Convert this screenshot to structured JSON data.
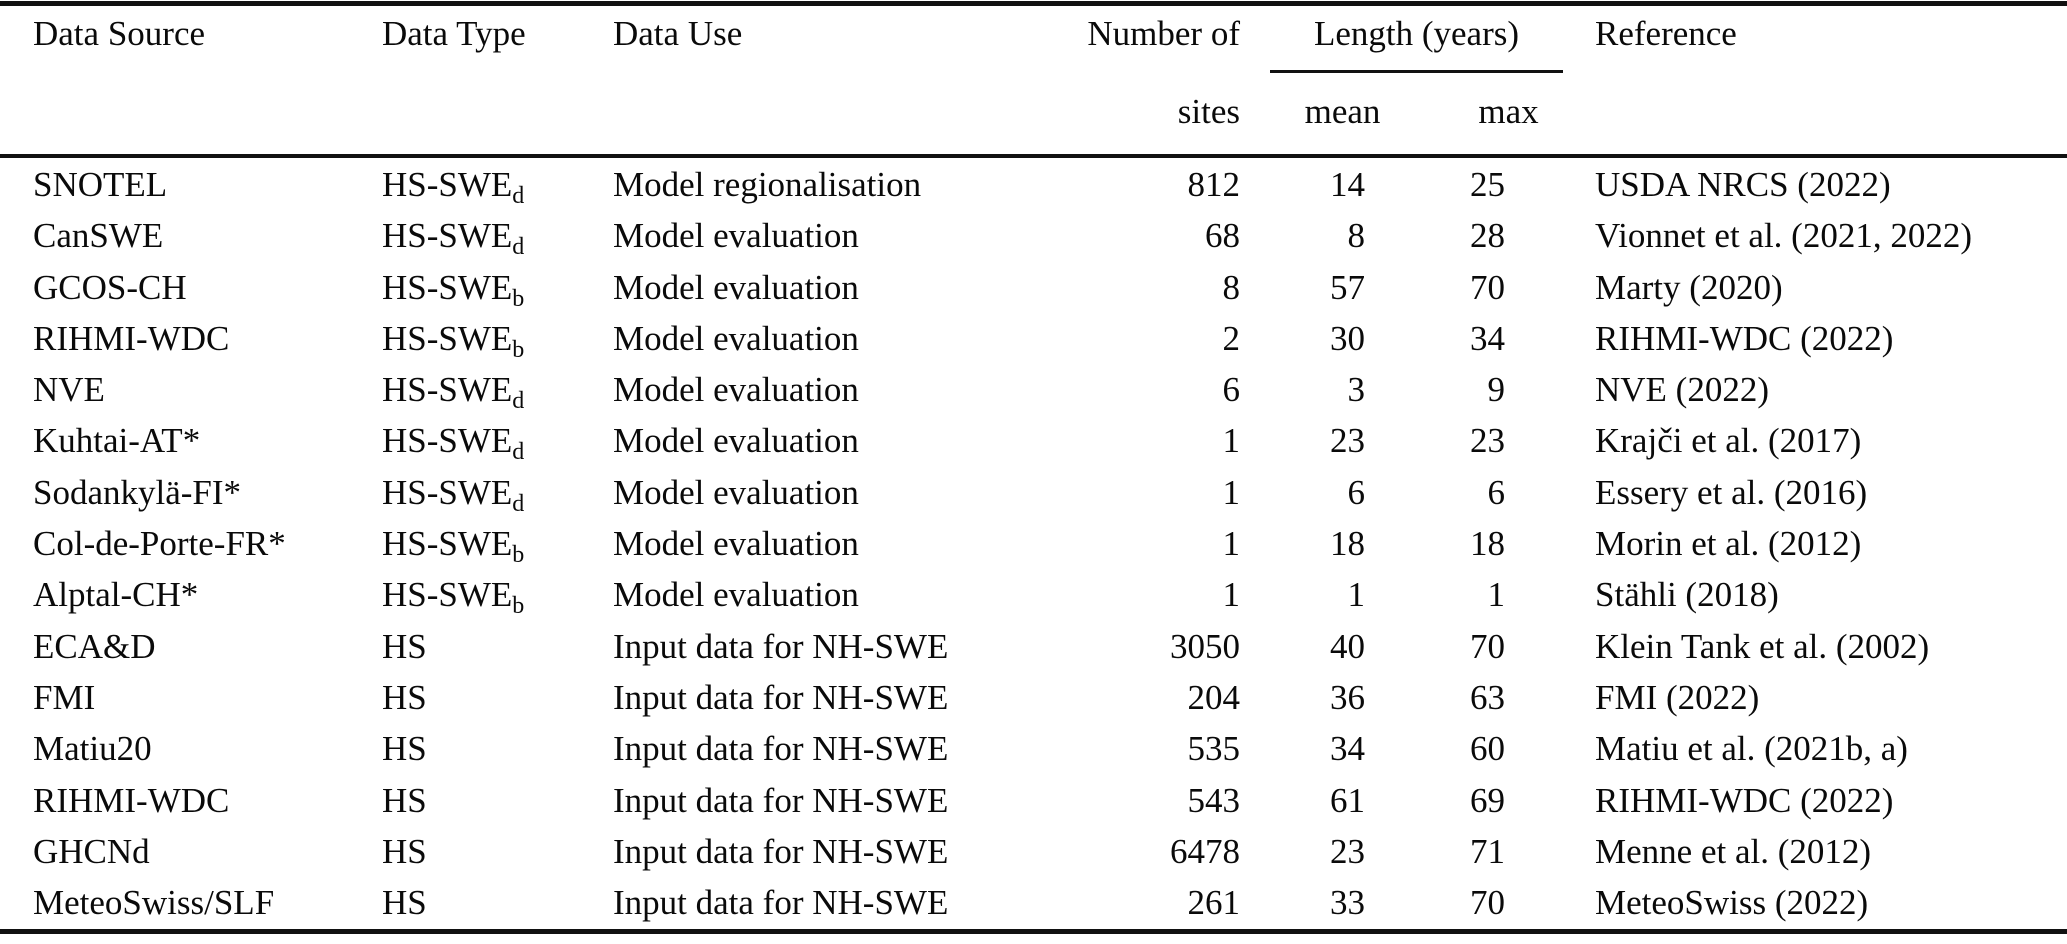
{
  "table": {
    "headers": {
      "data_source": "Data Source",
      "data_type": "Data Type",
      "data_use": "Data Use",
      "number_of": "Number of",
      "sites": "sites",
      "length_years": "Length (years)",
      "mean": "mean",
      "max": "max",
      "reference": "Reference"
    },
    "rows": [
      {
        "source": "SNOTEL",
        "type_base": "HS-SWE",
        "type_sub": "d",
        "use": "Model regionalisation",
        "sites": "812",
        "mean": "14",
        "max": "25",
        "reference": "USDA NRCS (2022)"
      },
      {
        "source": "CanSWE",
        "type_base": "HS-SWE",
        "type_sub": "d",
        "use": "Model evaluation",
        "sites": "68",
        "mean": "8",
        "max": "28",
        "reference": "Vionnet et al. (2021, 2022)"
      },
      {
        "source": "GCOS-CH",
        "type_base": "HS-SWE",
        "type_sub": "b",
        "use": "Model evaluation",
        "sites": "8",
        "mean": "57",
        "max": "70",
        "reference": "Marty (2020)"
      },
      {
        "source": "RIHMI-WDC",
        "type_base": "HS-SWE",
        "type_sub": "b",
        "use": "Model evaluation",
        "sites": "2",
        "mean": "30",
        "max": "34",
        "reference": "RIHMI-WDC (2022)"
      },
      {
        "source": "NVE",
        "type_base": "HS-SWE",
        "type_sub": "d",
        "use": "Model evaluation",
        "sites": "6",
        "mean": "3",
        "max": "9",
        "reference": "NVE (2022)"
      },
      {
        "source": "Kuhtai-AT*",
        "type_base": "HS-SWE",
        "type_sub": "d",
        "use": "Model evaluation",
        "sites": "1",
        "mean": "23",
        "max": "23",
        "reference": "Krajči et al. (2017)"
      },
      {
        "source": "Sodankylä-FI*",
        "type_base": "HS-SWE",
        "type_sub": "d",
        "use": "Model evaluation",
        "sites": "1",
        "mean": "6",
        "max": "6",
        "reference": "Essery et al. (2016)"
      },
      {
        "source": "Col-de-Porte-FR*",
        "type_base": "HS-SWE",
        "type_sub": "b",
        "use": "Model evaluation",
        "sites": "1",
        "mean": "18",
        "max": "18",
        "reference": "Morin et al. (2012)"
      },
      {
        "source": "Alptal-CH*",
        "type_base": "HS-SWE",
        "type_sub": "b",
        "use": "Model evaluation",
        "sites": "1",
        "mean": "1",
        "max": "1",
        "reference": "Stähli (2018)"
      },
      {
        "source": "ECA&D",
        "type_base": "HS",
        "type_sub": "",
        "use": "Input data for NH-SWE",
        "sites": "3050",
        "mean": "40",
        "max": "70",
        "reference": "Klein Tank et al. (2002)"
      },
      {
        "source": "FMI",
        "type_base": "HS",
        "type_sub": "",
        "use": "Input data for NH-SWE",
        "sites": "204",
        "mean": "36",
        "max": "63",
        "reference": "FMI (2022)"
      },
      {
        "source": "Matiu20",
        "type_base": "HS",
        "type_sub": "",
        "use": "Input data for NH-SWE",
        "sites": "535",
        "mean": "34",
        "max": "60",
        "reference": "Matiu et al. (2021b, a)"
      },
      {
        "source": "RIHMI-WDC",
        "type_base": "HS",
        "type_sub": "",
        "use": "Input data for NH-SWE",
        "sites": "543",
        "mean": "61",
        "max": "69",
        "reference": "RIHMI-WDC (2022)"
      },
      {
        "source": "GHCNd",
        "type_base": "HS",
        "type_sub": "",
        "use": "Input data for NH-SWE",
        "sites": "6478",
        "mean": "23",
        "max": "71",
        "reference": "Menne et al. (2012)"
      },
      {
        "source": "MeteoSwiss/SLF",
        "type_base": "HS",
        "type_sub": "",
        "use": "Input data for NH-SWE",
        "sites": "261",
        "mean": "33",
        "max": "70",
        "reference": "MeteoSwiss (2022)"
      }
    ]
  }
}
